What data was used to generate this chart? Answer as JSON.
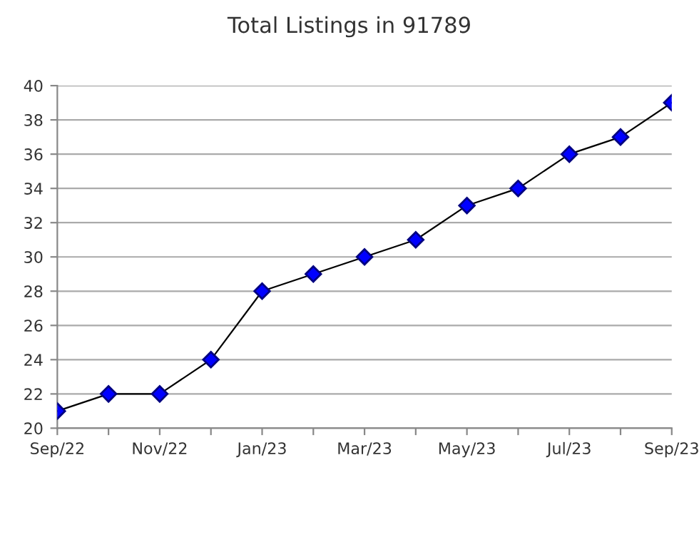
{
  "chart_data": {
    "type": "line",
    "title": "Total Listings in 91789",
    "categories": [
      "Sep/22",
      null,
      "Nov/22",
      null,
      "Jan/23",
      null,
      "Mar/23",
      null,
      "May/23",
      null,
      "Jul/23",
      null,
      "Sep/23"
    ],
    "series": [
      {
        "color": "#0000ff",
        "values": [
          21,
          22,
          22,
          24,
          28,
          29,
          30,
          31,
          33,
          34,
          36,
          37,
          39
        ]
      }
    ],
    "ylim": [
      20,
      40
    ],
    "yticks": [
      20,
      22,
      24,
      26,
      28,
      30,
      32,
      34,
      36,
      38,
      40
    ],
    "grid": "y",
    "marker": "diamond",
    "line_style": "solid",
    "legend": false
  }
}
